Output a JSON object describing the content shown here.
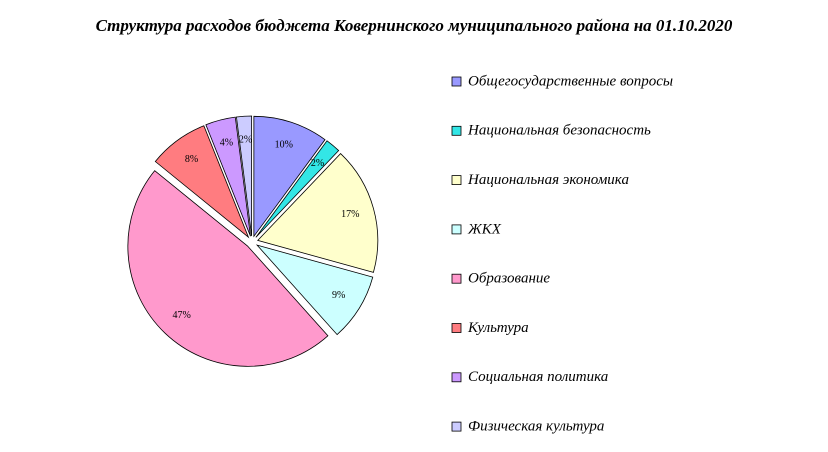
{
  "chart_data": {
    "type": "pie",
    "title": "Структура расходов бюджета Ковернинского муниципального района на 01.10.2020",
    "categories": [
      "Общегосударственные вопросы",
      "Национальная безопасность",
      "Национальная экономика",
      "ЖКХ",
      "Образование",
      "Культура",
      "Социальная политика",
      "Физическая культура"
    ],
    "values": [
      10,
      2,
      17,
      9,
      47,
      8,
      4,
      2
    ],
    "value_labels": [
      "10%",
      "2%",
      "17%",
      "9%",
      "47%",
      "8%",
      "4%",
      "2%"
    ],
    "colors": [
      "#9999ff",
      "#33e6e6",
      "#ffffcc",
      "#ccffff",
      "#ff99cc",
      "#ff7c80",
      "#cc99ff",
      "#ccccff"
    ],
    "legend": "right"
  }
}
